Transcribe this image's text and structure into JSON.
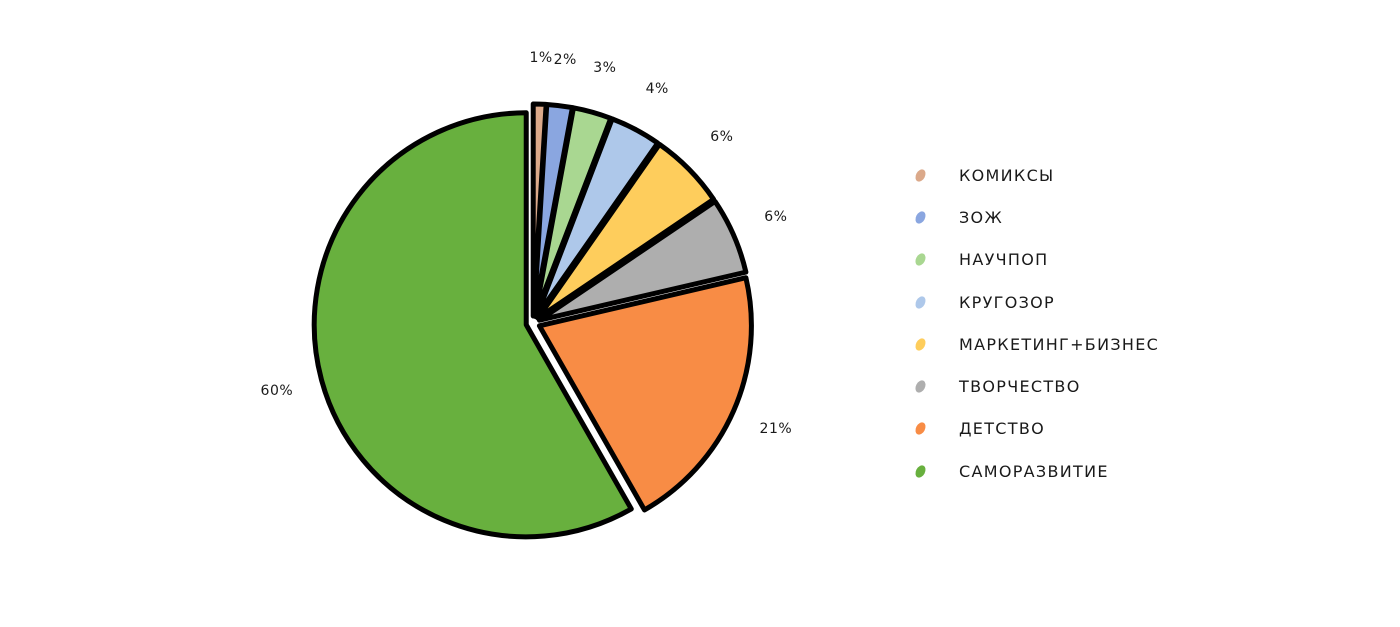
{
  "chart_data": {
    "type": "pie",
    "categories": [
      "КОМИКСЫ",
      "ЗОЖ",
      "НАУЧПОП",
      "КРУГОЗОР",
      "МАРКЕТИНГ+БИЗНЕС",
      "ТВОРЧЕСТВО",
      "ДЕТСТВО",
      "САМОРАЗВИТИЕ"
    ],
    "values": [
      1,
      2,
      3,
      4,
      6,
      6,
      21,
      60
    ],
    "value_labels": [
      "1%",
      "2%",
      "3%",
      "4%",
      "6%",
      "6%",
      "21%",
      "60%"
    ],
    "colors": [
      "#dba98a",
      "#8aa6e0",
      "#a9d791",
      "#aec8ea",
      "#fecd5c",
      "#aeaeae",
      "#f88c45",
      "#68b03e"
    ],
    "legend_placement": "right",
    "title": "",
    "start": "top",
    "direction": "clockwise"
  },
  "legend": {
    "items": [
      {
        "label": "КОМИКСЫ",
        "color": "#dba98a"
      },
      {
        "label": "ЗОЖ",
        "color": "#8aa6e0"
      },
      {
        "label": "НАУЧПОП",
        "color": "#a9d791"
      },
      {
        "label": "КРУГОЗОР",
        "color": "#aec8ea"
      },
      {
        "label": "МАРКЕТИНГ+БИЗНЕС",
        "color": "#fecd5c"
      },
      {
        "label": "ТВОРЧЕСТВО",
        "color": "#aeaeae"
      },
      {
        "label": "ДЕТСТВО",
        "color": "#f88c45"
      },
      {
        "label": "САМОРАЗВИТИЕ",
        "color": "#68b03e"
      }
    ]
  }
}
